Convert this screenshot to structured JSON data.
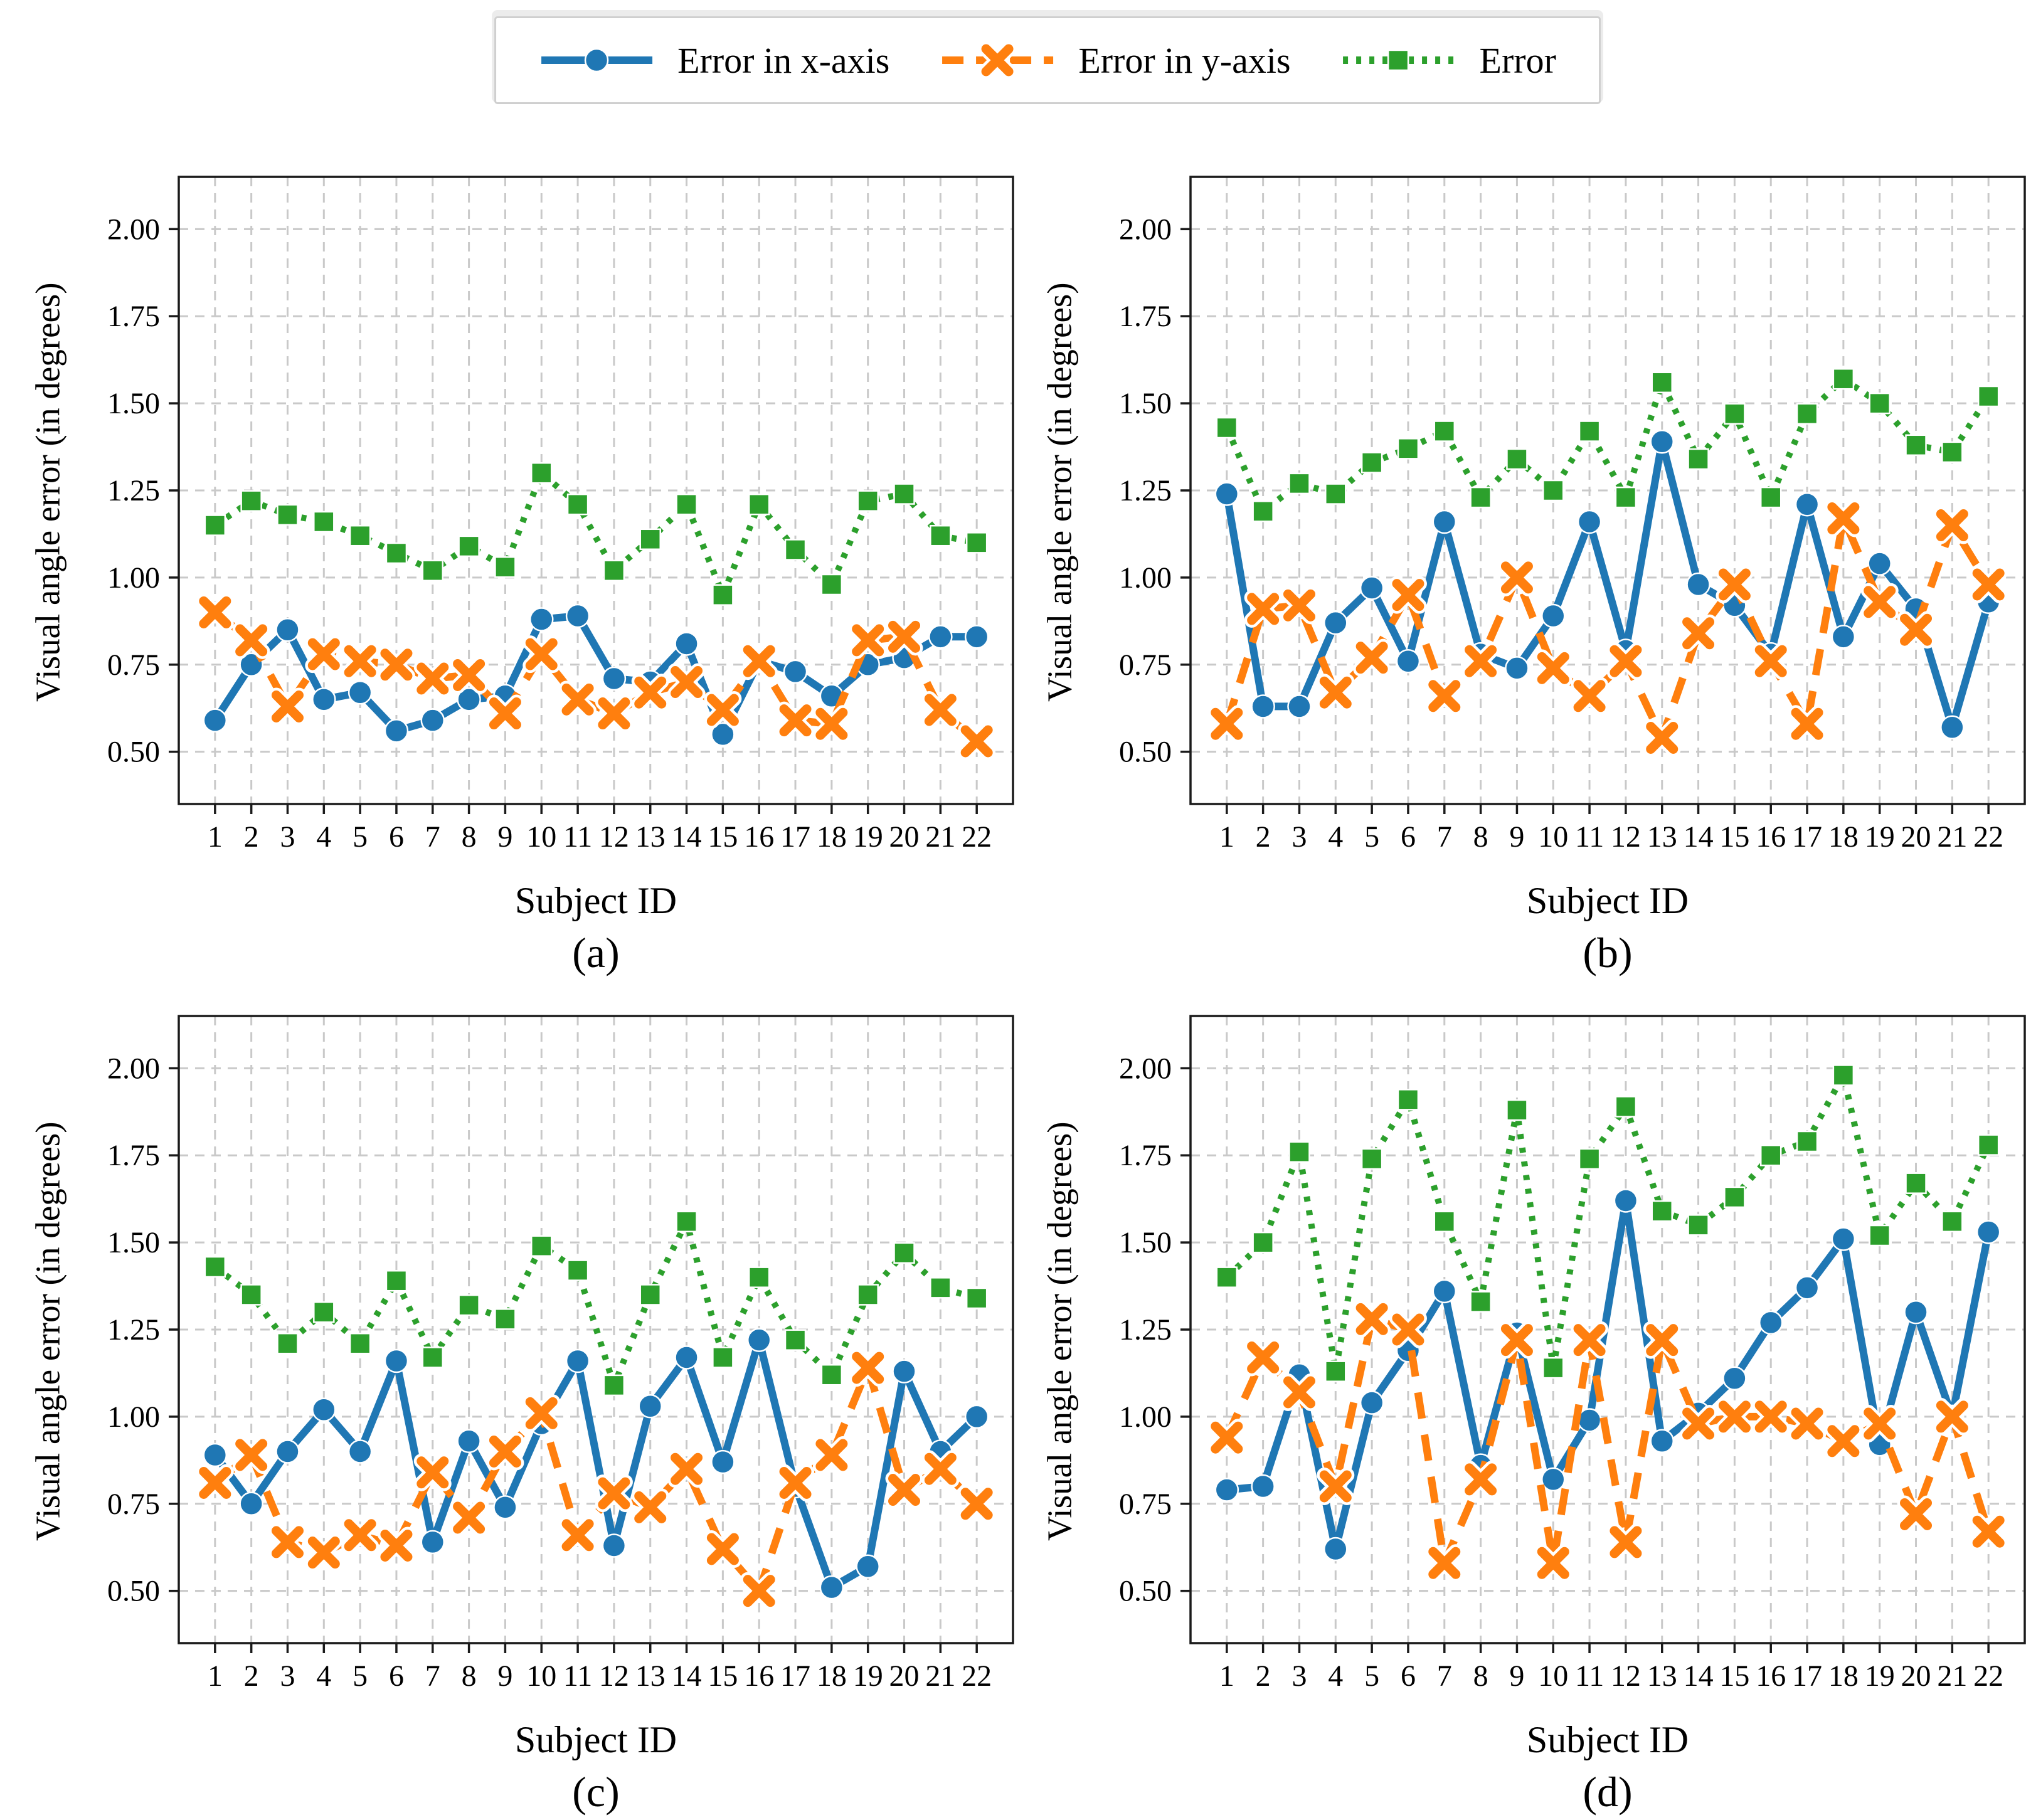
{
  "page": {
    "background": "#ffffff"
  },
  "legend": {
    "items": [
      {
        "label": "Error in x-axis",
        "marker": "circle-icon",
        "linestyle": "solid"
      },
      {
        "label": "Error in y-axis",
        "marker": "x-icon",
        "linestyle": "dashed"
      },
      {
        "label": "Error",
        "marker": "square-icon",
        "linestyle": "dotted"
      }
    ]
  },
  "axes": {
    "xlabel": "Subject ID",
    "ylabel": "Visual angle error (in degrees)",
    "yticks": [
      "2.00",
      "1.75",
      "1.50",
      "1.25",
      "1.00",
      "0.75",
      "0.50"
    ],
    "xticks": [
      "1",
      "2",
      "3",
      "4",
      "5",
      "6",
      "7",
      "8",
      "9",
      "10",
      "11",
      "12",
      "13",
      "14",
      "15",
      "16",
      "17",
      "18",
      "19",
      "20",
      "21",
      "22"
    ]
  },
  "colors": {
    "x_series": "#1f77b4",
    "y_series": "#ff7f0e",
    "total_series": "#2ca02c",
    "grid": "#c9c9c9",
    "spine": "#1a1a1a",
    "text": "#000000"
  },
  "chart_data": [
    {
      "id": "a",
      "caption": "(a)",
      "type": "line",
      "title": "",
      "xlabel": "Subject ID",
      "ylabel": "Visual angle error (in degrees)",
      "x": [
        1,
        2,
        3,
        4,
        5,
        6,
        7,
        8,
        9,
        10,
        11,
        12,
        13,
        14,
        15,
        16,
        17,
        18,
        19,
        20,
        21,
        22
      ],
      "ylim": [
        0.35,
        2.15
      ],
      "grid": true,
      "legend_position": "top-center",
      "series": [
        {
          "name": "Error in x-axis",
          "marker": "circle",
          "linestyle": "solid",
          "color": "#1f77b4",
          "values": [
            0.59,
            0.75,
            0.85,
            0.65,
            0.67,
            0.56,
            0.59,
            0.65,
            0.66,
            0.88,
            0.89,
            0.71,
            0.7,
            0.81,
            0.55,
            0.76,
            0.73,
            0.66,
            0.75,
            0.77,
            0.83,
            0.83
          ]
        },
        {
          "name": "Error in y-axis",
          "marker": "x",
          "linestyle": "dashed",
          "color": "#ff7f0e",
          "values": [
            0.9,
            0.82,
            0.63,
            0.78,
            0.76,
            0.75,
            0.71,
            0.72,
            0.61,
            0.78,
            0.65,
            0.61,
            0.67,
            0.7,
            0.62,
            0.76,
            0.59,
            0.58,
            0.82,
            0.83,
            0.62,
            0.53
          ]
        },
        {
          "name": "Error",
          "marker": "square",
          "linestyle": "dotted",
          "color": "#2ca02c",
          "values": [
            1.15,
            1.22,
            1.18,
            1.16,
            1.12,
            1.07,
            1.02,
            1.09,
            1.03,
            1.3,
            1.21,
            1.02,
            1.11,
            1.21,
            0.95,
            1.21,
            1.08,
            0.98,
            1.22,
            1.24,
            1.12,
            1.1
          ]
        }
      ]
    },
    {
      "id": "b",
      "caption": "(b)",
      "type": "line",
      "title": "",
      "xlabel": "Subject ID",
      "ylabel": "Visual angle error (in degrees)",
      "x": [
        1,
        2,
        3,
        4,
        5,
        6,
        7,
        8,
        9,
        10,
        11,
        12,
        13,
        14,
        15,
        16,
        17,
        18,
        19,
        20,
        21,
        22
      ],
      "ylim": [
        0.35,
        2.15
      ],
      "grid": true,
      "legend_position": "top-center",
      "series": [
        {
          "name": "Error in x-axis",
          "marker": "circle",
          "linestyle": "solid",
          "color": "#1f77b4",
          "values": [
            1.24,
            0.63,
            0.63,
            0.87,
            0.97,
            0.76,
            1.16,
            0.78,
            0.74,
            0.89,
            1.16,
            0.79,
            1.39,
            0.98,
            0.92,
            0.78,
            1.21,
            0.83,
            1.04,
            0.91,
            0.57,
            0.93
          ]
        },
        {
          "name": "Error in y-axis",
          "marker": "x",
          "linestyle": "dashed",
          "color": "#ff7f0e",
          "values": [
            0.58,
            0.91,
            0.92,
            0.67,
            0.77,
            0.95,
            0.66,
            0.76,
            1.0,
            0.74,
            0.66,
            0.76,
            0.54,
            0.84,
            0.98,
            0.76,
            0.58,
            1.17,
            0.93,
            0.85,
            1.15,
            0.98
          ]
        },
        {
          "name": "Error",
          "marker": "square",
          "linestyle": "dotted",
          "color": "#2ca02c",
          "values": [
            1.43,
            1.19,
            1.27,
            1.24,
            1.33,
            1.37,
            1.42,
            1.23,
            1.34,
            1.25,
            1.42,
            1.23,
            1.56,
            1.34,
            1.47,
            1.23,
            1.47,
            1.57,
            1.5,
            1.38,
            1.36,
            1.52
          ]
        }
      ]
    },
    {
      "id": "c",
      "caption": "(c)",
      "type": "line",
      "title": "",
      "xlabel": "Subject ID",
      "ylabel": "Visual angle error (in degrees)",
      "x": [
        1,
        2,
        3,
        4,
        5,
        6,
        7,
        8,
        9,
        10,
        11,
        12,
        13,
        14,
        15,
        16,
        17,
        18,
        19,
        20,
        21,
        22
      ],
      "ylim": [
        0.35,
        2.15
      ],
      "grid": true,
      "legend_position": "top-center",
      "series": [
        {
          "name": "Error in x-axis",
          "marker": "circle",
          "linestyle": "solid",
          "color": "#1f77b4",
          "values": [
            0.89,
            0.75,
            0.9,
            1.02,
            0.9,
            1.16,
            0.64,
            0.93,
            0.74,
            0.98,
            1.16,
            0.63,
            1.03,
            1.17,
            0.87,
            1.22,
            0.8,
            0.51,
            0.57,
            1.13,
            0.9,
            1.0
          ]
        },
        {
          "name": "Error in y-axis",
          "marker": "x",
          "linestyle": "dashed",
          "color": "#ff7f0e",
          "values": [
            0.81,
            0.89,
            0.64,
            0.61,
            0.66,
            0.63,
            0.84,
            0.71,
            0.9,
            1.01,
            0.66,
            0.78,
            0.74,
            0.85,
            0.62,
            0.5,
            0.81,
            0.89,
            1.14,
            0.79,
            0.85,
            0.75
          ]
        },
        {
          "name": "Error",
          "marker": "square",
          "linestyle": "dotted",
          "color": "#2ca02c",
          "values": [
            1.43,
            1.35,
            1.21,
            1.3,
            1.21,
            1.39,
            1.17,
            1.32,
            1.28,
            1.49,
            1.42,
            1.09,
            1.35,
            1.56,
            1.17,
            1.4,
            1.22,
            1.12,
            1.35,
            1.47,
            1.37,
            1.34
          ]
        }
      ]
    },
    {
      "id": "d",
      "caption": "(d)",
      "type": "line",
      "title": "",
      "xlabel": "Subject ID",
      "ylabel": "Visual angle error (in degrees)",
      "x": [
        1,
        2,
        3,
        4,
        5,
        6,
        7,
        8,
        9,
        10,
        11,
        12,
        13,
        14,
        15,
        16,
        17,
        18,
        19,
        20,
        21,
        22
      ],
      "ylim": [
        0.35,
        2.15
      ],
      "grid": true,
      "legend_position": "top-center",
      "series": [
        {
          "name": "Error in x-axis",
          "marker": "circle",
          "linestyle": "solid",
          "color": "#1f77b4",
          "values": [
            0.79,
            0.8,
            1.12,
            0.62,
            1.04,
            1.19,
            1.36,
            0.86,
            1.24,
            0.82,
            0.99,
            1.62,
            0.93,
            1.01,
            1.11,
            1.27,
            1.37,
            1.51,
            0.92,
            1.3,
            1.0,
            1.53
          ]
        },
        {
          "name": "Error in y-axis",
          "marker": "x",
          "linestyle": "dashed",
          "color": "#ff7f0e",
          "values": [
            0.94,
            1.17,
            1.07,
            0.8,
            1.28,
            1.25,
            0.58,
            0.82,
            1.22,
            0.58,
            1.22,
            0.64,
            1.22,
            0.98,
            1.0,
            1.0,
            0.98,
            0.93,
            0.98,
            0.72,
            1.0,
            0.67
          ]
        },
        {
          "name": "Error",
          "marker": "square",
          "linestyle": "dotted",
          "color": "#2ca02c",
          "values": [
            1.4,
            1.5,
            1.76,
            1.13,
            1.74,
            1.91,
            1.56,
            1.33,
            1.88,
            1.14,
            1.74,
            1.89,
            1.59,
            1.55,
            1.63,
            1.75,
            1.79,
            1.98,
            1.52,
            1.67,
            1.56,
            1.78
          ]
        }
      ]
    }
  ]
}
